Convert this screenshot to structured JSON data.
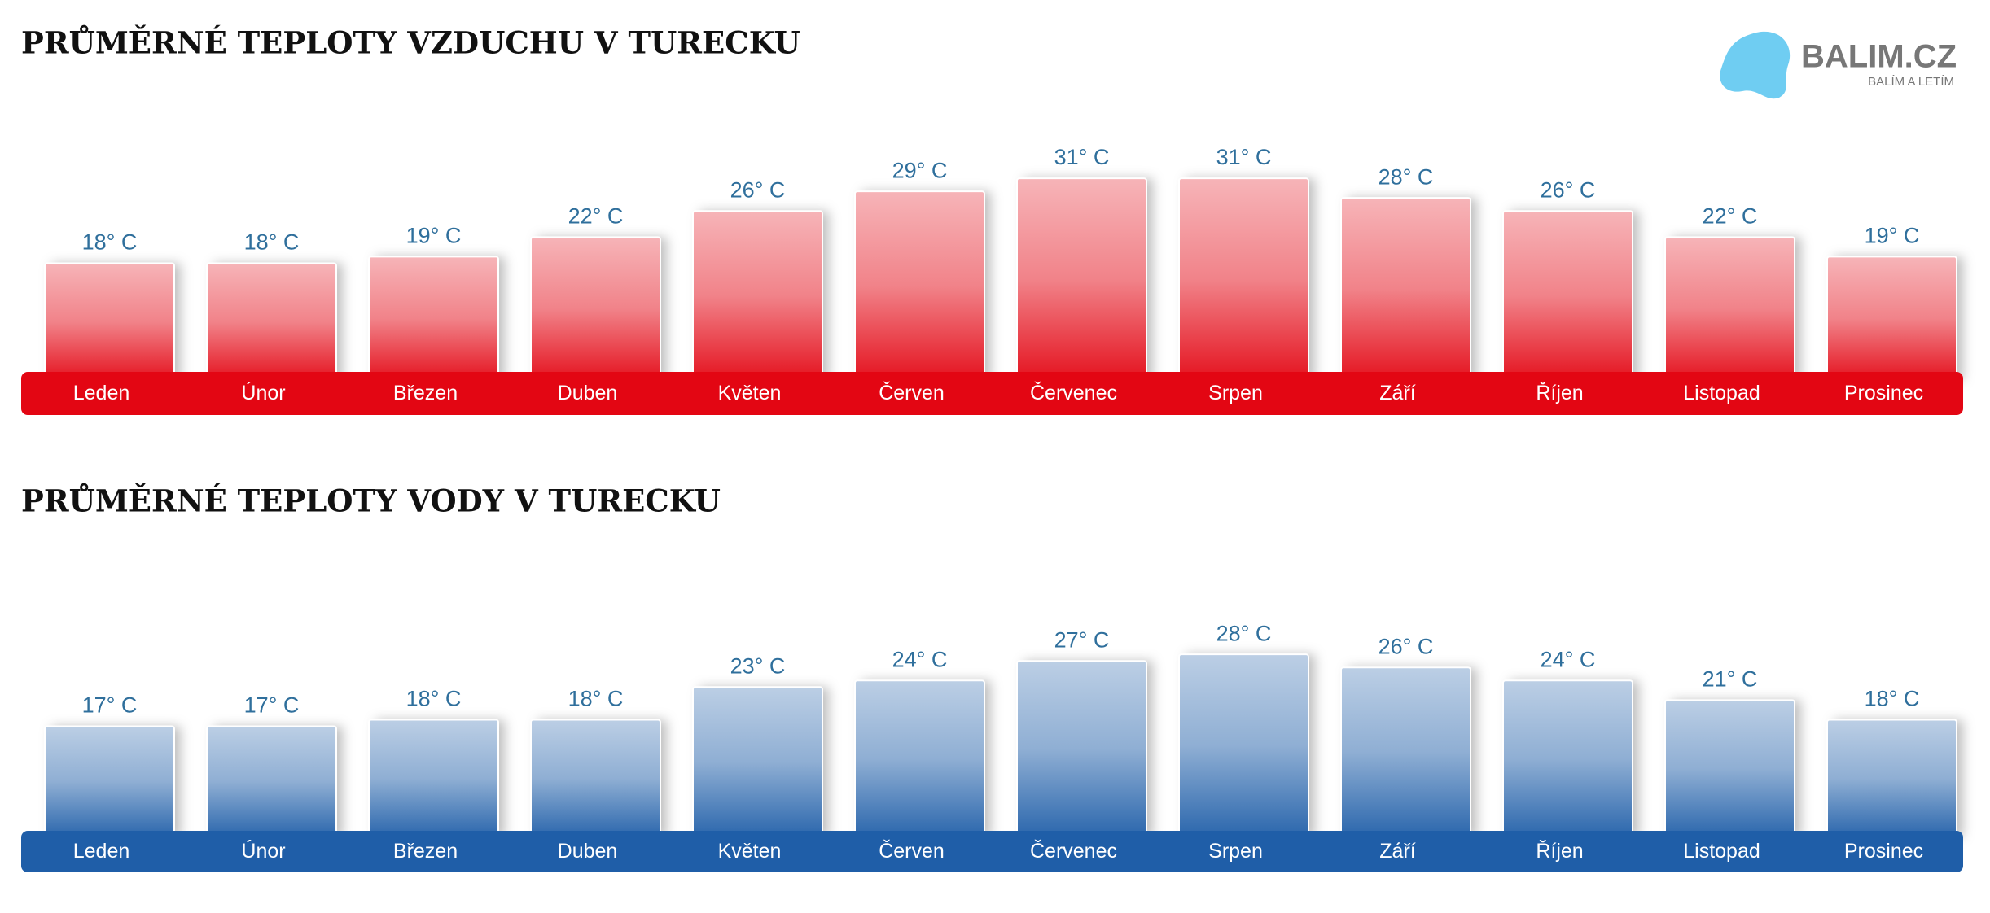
{
  "logo": {
    "name": "BALIM.CZ",
    "tagline": "BALÍM A LETÍM"
  },
  "chart_data": [
    {
      "type": "bar",
      "title": "PRŮMĚRNÉ TEPLOTY VZDUCHU V TURECKU",
      "color": "#e30613",
      "categories": [
        "Leden",
        "Únor",
        "Březen",
        "Duben",
        "Květen",
        "Červen",
        "Červenec",
        "Srpen",
        "Září",
        "Říjen",
        "Listopad",
        "Prosinec"
      ],
      "values": [
        18,
        18,
        19,
        22,
        26,
        29,
        31,
        31,
        28,
        26,
        22,
        19
      ],
      "value_labels": [
        "18° C",
        "18° C",
        "19° C",
        "22° C",
        "26° C",
        "29° C",
        "31° C",
        "31° C",
        "28° C",
        "26° C",
        "22° C",
        "19° C"
      ]
    },
    {
      "type": "bar",
      "title": "PRŮMĚRNÉ TEPLOTY VODY V TURECKU",
      "color": "#1f5ea8",
      "categories": [
        "Leden",
        "Únor",
        "Březen",
        "Duben",
        "Květen",
        "Červen",
        "Červenec",
        "Srpen",
        "Září",
        "Říjen",
        "Listopad",
        "Prosinec"
      ],
      "values": [
        17,
        17,
        18,
        18,
        23,
        24,
        27,
        28,
        26,
        24,
        21,
        18
      ],
      "value_labels": [
        "17° C",
        "17° C",
        "18° C",
        "18° C",
        "23° C",
        "24° C",
        "27° C",
        "28° C",
        "26° C",
        "24° C",
        "21° C",
        "18° C"
      ]
    }
  ]
}
